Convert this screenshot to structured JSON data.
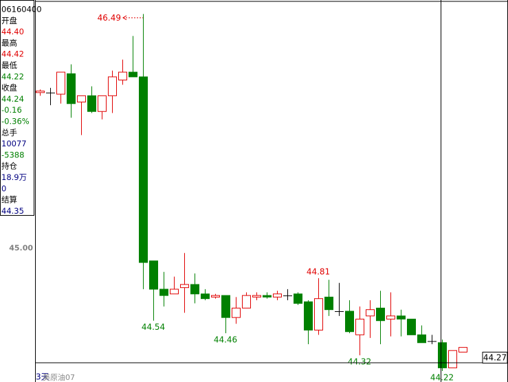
{
  "chart_data": {
    "type": "candlestick",
    "symbol": "美原油07",
    "period": "3天",
    "ylim": [
      44.15,
      46.57
    ],
    "yticks": [
      {
        "value": 45,
        "label": "45.00"
      }
    ],
    "up_color": "#e00000",
    "down_color": "#008000",
    "flat_color": "#000000",
    "series": [
      {
        "open": [
          45.99,
          45.99,
          45.98,
          46.11,
          45.93,
          45.97,
          45.87,
          45.97,
          46.07,
          46.12,
          46.09,
          44.92,
          44.74,
          44.71,
          44.75,
          44.77,
          44.71,
          44.69,
          44.7,
          44.56,
          44.62,
          44.69,
          44.7,
          44.69,
          44.7,
          44.71,
          44.66,
          44.48,
          44.69,
          44.6,
          44.6,
          44.45,
          44.57,
          44.62,
          44.55,
          44.57,
          44.55,
          44.45,
          44.41,
          44.4,
          44.24,
          44.34
        ],
        "high": [
          46.01,
          46.02,
          46.12,
          46.17,
          45.97,
          46.03,
          45.97,
          46.13,
          46.2,
          46.35,
          46.49,
          44.92,
          44.85,
          44.82,
          44.97,
          44.84,
          44.74,
          44.71,
          44.7,
          44.69,
          44.72,
          44.72,
          44.72,
          44.73,
          44.74,
          44.72,
          44.67,
          44.81,
          44.8,
          44.78,
          44.67,
          44.63,
          44.67,
          44.73,
          44.72,
          44.61,
          44.55,
          44.51,
          44.45,
          44.42,
          44.35,
          44.37
        ],
        "low": [
          45.97,
          45.91,
          45.92,
          45.83,
          45.72,
          45.86,
          45.82,
          45.86,
          46.04,
          46.09,
          44.74,
          44.54,
          44.63,
          44.71,
          44.59,
          44.65,
          44.67,
          44.68,
          44.46,
          44.52,
          44.62,
          44.67,
          44.68,
          44.67,
          44.67,
          44.64,
          44.39,
          44.45,
          44.57,
          44.57,
          44.46,
          44.32,
          44.43,
          44.39,
          44.44,
          44.44,
          44.45,
          44.4,
          44.39,
          44.22,
          44.24,
          44.34
        ],
        "close": [
          46.0,
          45.99,
          46.12,
          45.92,
          45.97,
          45.87,
          45.97,
          46.09,
          46.12,
          46.09,
          44.91,
          44.74,
          44.7,
          44.74,
          44.77,
          44.71,
          44.68,
          44.7,
          44.56,
          44.62,
          44.7,
          44.7,
          44.69,
          44.71,
          44.7,
          44.65,
          44.48,
          44.68,
          44.61,
          44.6,
          44.47,
          44.55,
          44.61,
          44.54,
          44.57,
          44.55,
          44.45,
          44.4,
          44.41,
          44.24,
          44.35,
          44.37
        ]
      }
    ],
    "marked_highs": [
      10,
      27
    ],
    "marked_lows": [
      11,
      18,
      31,
      39
    ],
    "crosshair": {
      "index": 39,
      "value": 44.27
    },
    "info": [
      {
        "text": "06160400",
        "color": "#000000"
      },
      {
        "text": "开盘",
        "color": "#000000"
      },
      {
        "text": "44.40",
        "color": "#e00000"
      },
      {
        "text": "最高",
        "color": "#000000"
      },
      {
        "text": "44.42",
        "color": "#e00000"
      },
      {
        "text": "最低",
        "color": "#000000"
      },
      {
        "text": "44.22",
        "color": "#008000"
      },
      {
        "text": "收盘",
        "color": "#000000"
      },
      {
        "text": "44.24",
        "color": "#008000"
      },
      {
        "text": "-0.16",
        "color": "#008000"
      },
      {
        "text": "-0.36%",
        "color": "#008000"
      },
      {
        "text": "总手",
        "color": "#000000"
      },
      {
        "text": "10077",
        "color": "#000080"
      },
      {
        "text": "-5388",
        "color": "#008000"
      },
      {
        "text": "持仓",
        "color": "#000000"
      },
      {
        "text": "18.9万",
        "color": "#000080"
      },
      {
        "text": "0",
        "color": "#000080"
      },
      {
        "text": "结算",
        "color": "#000000"
      },
      {
        "text": "44.35",
        "color": "#000080"
      }
    ]
  }
}
